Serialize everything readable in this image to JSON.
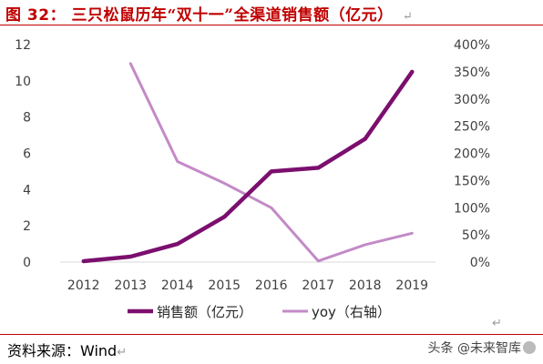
{
  "header": {
    "figure_label": "图",
    "figure_number": "32",
    "title_text": "三只松鼠历年“双十一”全渠道销售额（亿元）"
  },
  "footer": {
    "source": "资料来源：Wind",
    "watermark": "头条 @未来智库"
  },
  "chart_data": {
    "type": "line",
    "title": "三只松鼠历年“双十一”全渠道销售额（亿元）",
    "xlabel": "",
    "x": [
      "2012",
      "2013",
      "2014",
      "2015",
      "2016",
      "2017",
      "2018",
      "2019"
    ],
    "y_left": {
      "ylim": [
        0,
        12
      ],
      "ticks": [
        0,
        2,
        4,
        6,
        8,
        10,
        12
      ]
    },
    "y_right": {
      "ylim": [
        0,
        400
      ],
      "ticks": [
        0,
        50,
        100,
        150,
        200,
        250,
        300,
        350,
        400
      ],
      "tick_labels": [
        "0%",
        "50%",
        "100%",
        "150%",
        "200%",
        "250%",
        "300%",
        "350%",
        "400%"
      ]
    },
    "series": [
      {
        "name": "销售额（亿元）",
        "axis": "left",
        "color": "#7B0F6E",
        "x": [
          "2012",
          "2013",
          "2014",
          "2015",
          "2016",
          "2017",
          "2018",
          "2019"
        ],
        "values": [
          0.05,
          0.3,
          1.0,
          2.5,
          5.0,
          5.2,
          6.8,
          10.5
        ]
      },
      {
        "name": "yoy（右轴）",
        "axis": "right",
        "color": "#C38AC7",
        "x": [
          "2013",
          "2014",
          "2015",
          "2016",
          "2017",
          "2018",
          "2019"
        ],
        "values": [
          365,
          185,
          145,
          100,
          2,
          32,
          53
        ]
      }
    ],
    "grid": false,
    "legend": "bottom"
  }
}
